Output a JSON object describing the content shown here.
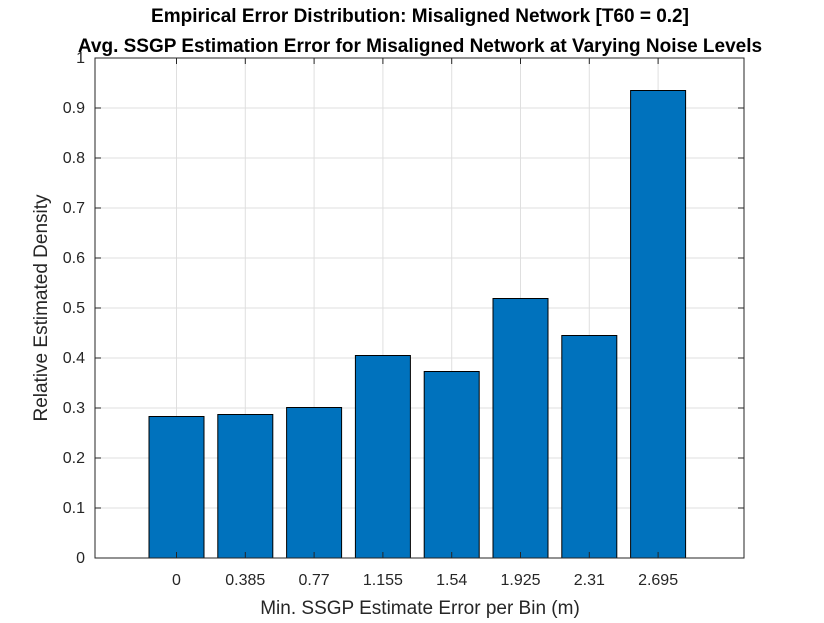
{
  "chart_data": {
    "type": "bar",
    "title": "Empirical Error Distribution: Misaligned Network [T60 = 0.2]",
    "subtitle": "Avg. SSGP Estimation Error for Misaligned Network at Varying Noise Levels",
    "xlabel": "Min. SSGP Estimate Error per Bin (m)",
    "ylabel": "Relative Estimated Density",
    "categories": [
      "0",
      "0.385",
      "0.77",
      "1.155",
      "1.54",
      "1.925",
      "2.31",
      "2.695"
    ],
    "values": [
      0.283,
      0.287,
      0.301,
      0.405,
      0.373,
      0.519,
      0.445,
      0.935
    ],
    "ylim": [
      0,
      1
    ],
    "yticks": [
      "0",
      "0.1",
      "0.2",
      "0.3",
      "0.4",
      "0.5",
      "0.6",
      "0.7",
      "0.8",
      "0.9",
      "1"
    ],
    "grid": true,
    "legend": "none",
    "bar_color": "#0072BD",
    "bar_edge_color": "#000000",
    "grid_color": "#dfdfdf",
    "axis_color": "#262626"
  }
}
